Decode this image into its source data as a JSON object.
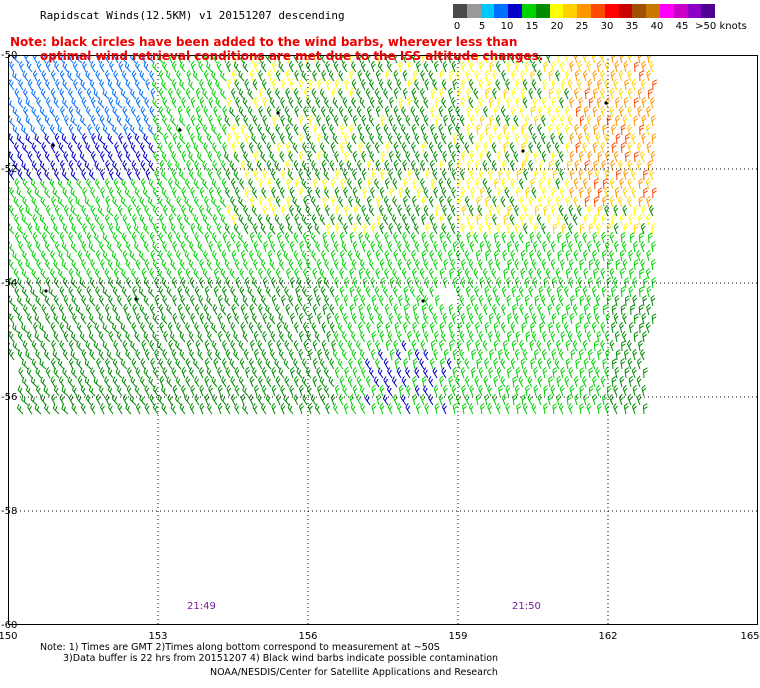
{
  "header": {
    "title": "Rapidscat Winds(12.5KM) v1 20151207 descending",
    "note_line1": "Note: black circles have been added to the wind barbs, wherever less than",
    "note_line2": "optimal wind retrieval conditions are met due to the ISS altitude changes."
  },
  "legend": {
    "labels": [
      "0",
      "5",
      "10",
      "15",
      "20",
      "25",
      "30",
      "35",
      "40",
      "45",
      ">50 knots"
    ],
    "colors": [
      "#4a4a4a",
      "#9a9a9a",
      "#00c8ff",
      "#0070ff",
      "#0000c8",
      "#00d200",
      "#008c00",
      "#ffff00",
      "#ffd200",
      "#ff9600",
      "#ff4b00",
      "#ff0000",
      "#c80000",
      "#a05000",
      "#c87800",
      "#ff00ff",
      "#c800c8",
      "#8c00c8",
      "#500090"
    ]
  },
  "map": {
    "lat_labels": [
      "-50",
      "-52",
      "-54",
      "-56",
      "-58",
      "-60"
    ],
    "lon_labels": [
      "150",
      "153",
      "156",
      "159",
      "162",
      "165"
    ],
    "times": [
      "21:49",
      "21:50"
    ],
    "lat_range": [
      -60,
      -50
    ],
    "lon_range": [
      150,
      165
    ],
    "swath": {
      "lon_range": [
        150,
        163
      ],
      "lat_range": [
        -56.5,
        -50
      ]
    }
  },
  "footer": {
    "line1": "Note: 1) Times are GMT 2)Times along bottom correspond to measurement at ~50S",
    "line2": "3)Data buffer is 22 hrs from 20151207 4) Black wind barbs indicate possible contamination",
    "line3": "NOAA/NESDIS/Center for Satellite Applications and Research"
  }
}
